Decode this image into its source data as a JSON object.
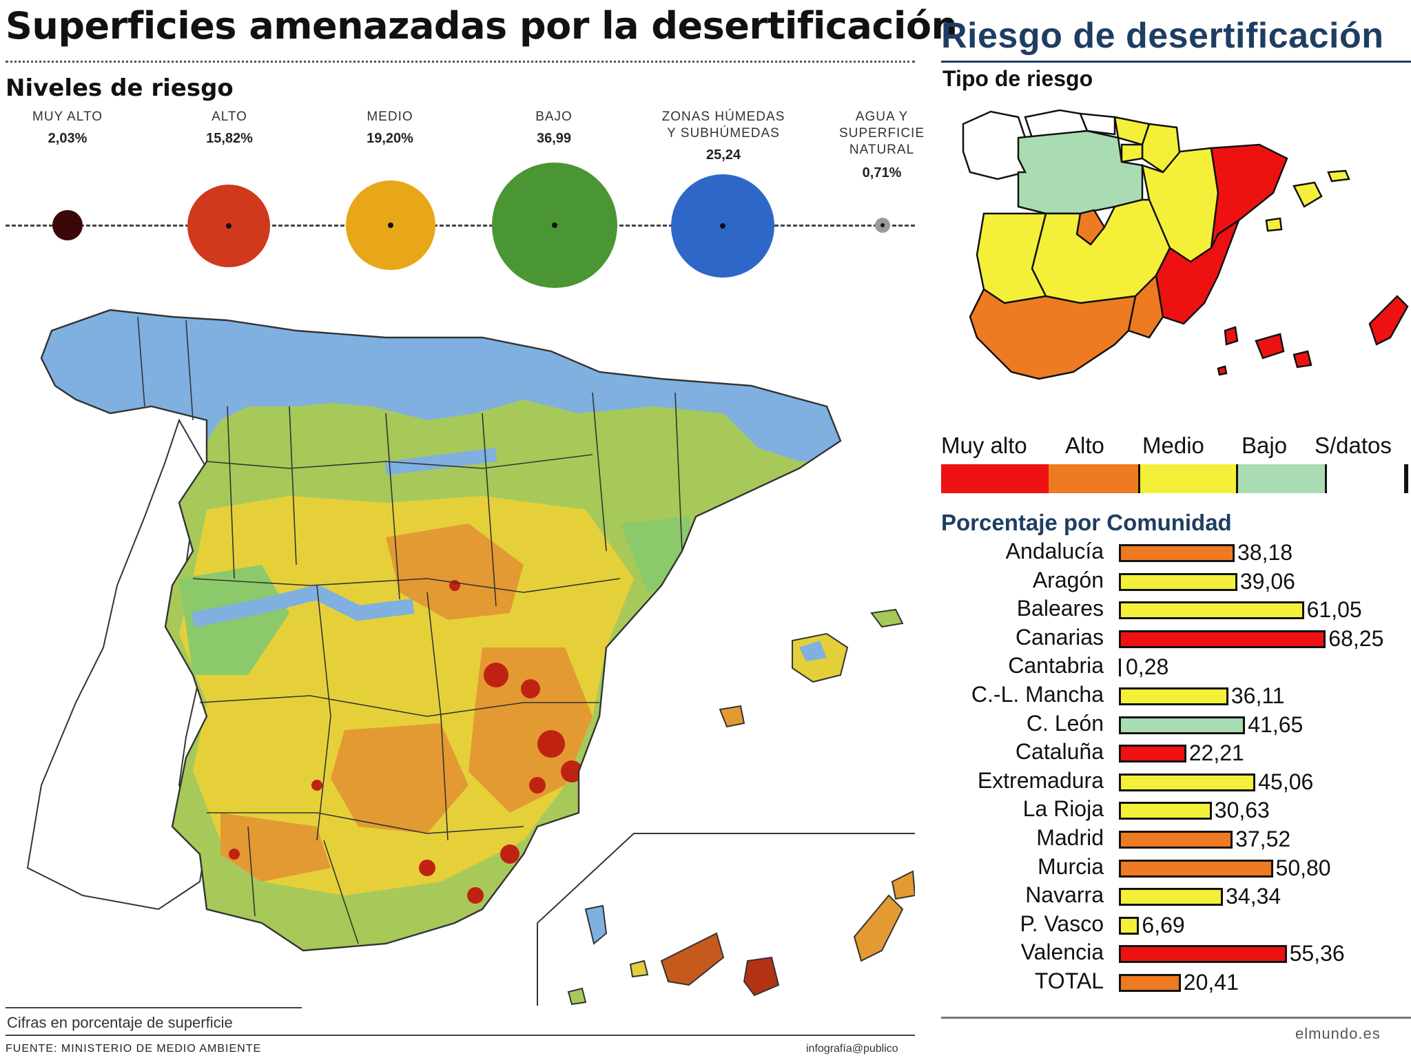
{
  "left": {
    "title": "Superficies amenazadas por la desertificación",
    "levels_heading": "Niveles de riesgo",
    "levels": [
      {
        "label": "MUY ALTO",
        "value": "2,03%",
        "color": "#3a0806"
      },
      {
        "label": "ALTO",
        "value": "15,82%",
        "color": "#d0391c"
      },
      {
        "label": "MEDIO",
        "value": "19,20%",
        "color": "#e7a719"
      },
      {
        "label": "BAJO",
        "value": "36,99",
        "color": "#4a9534"
      },
      {
        "label": "ZONAS HÚMEDAS\nY SUBHÚMEDAS",
        "value": "25,24",
        "color": "#2f67c9"
      },
      {
        "label": "AGUA Y\nSUPERFICIE\nNATURAL",
        "value": "0,71%",
        "color": "#9a9a9a"
      }
    ],
    "footnote": "Cifras en porcentaje de superficie",
    "source": "FUENTE: MINISTERIO DE MEDIO AMBIENTE",
    "credit": "infografía@publico"
  },
  "right": {
    "title": "Riesgo de desertificación",
    "tipo_heading": "Tipo de riesgo",
    "legend": [
      {
        "label": "Muy alto",
        "color": "#ee1111"
      },
      {
        "label": "Alto",
        "color": "#ee7a22"
      },
      {
        "label": "Medio",
        "color": "#f4f03a"
      },
      {
        "label": "Bajo",
        "color": "#a9dcb2"
      },
      {
        "label": "S/datos",
        "color": "#ffffff"
      }
    ],
    "pct_heading": "Porcentaje por Comunidad",
    "regions": [
      {
        "name": "Andalucía",
        "value": 38.18,
        "label": "38,18",
        "color": "#ee7a22"
      },
      {
        "name": "Aragón",
        "value": 39.06,
        "label": "39,06",
        "color": "#f4f03a"
      },
      {
        "name": "Baleares",
        "value": 61.05,
        "label": "61,05",
        "color": "#f4f03a"
      },
      {
        "name": "Canarias",
        "value": 68.25,
        "label": "68,25",
        "color": "#ee1111"
      },
      {
        "name": "Cantabria",
        "value": 0.28,
        "label": "0,28",
        "color": "#f4f03a"
      },
      {
        "name": "C.-L. Mancha",
        "value": 36.11,
        "label": "36,11",
        "color": "#f4f03a"
      },
      {
        "name": "C. León",
        "value": 41.65,
        "label": "41,65",
        "color": "#a9dcb2"
      },
      {
        "name": "Cataluña",
        "value": 22.21,
        "label": "22,21",
        "color": "#ee1111"
      },
      {
        "name": "Extremadura",
        "value": 45.06,
        "label": "45,06",
        "color": "#f4f03a"
      },
      {
        "name": "La Rioja",
        "value": 30.63,
        "label": "30,63",
        "color": "#f4f03a"
      },
      {
        "name": "Madrid",
        "value": 37.52,
        "label": "37,52",
        "color": "#ee7a22"
      },
      {
        "name": "Murcia",
        "value": 50.8,
        "label": "50,80",
        "color": "#ee7a22"
      },
      {
        "name": "Navarra",
        "value": 34.34,
        "label": "34,34",
        "color": "#f4f03a"
      },
      {
        "name": "P. Vasco",
        "value": 6.69,
        "label": "6,69",
        "color": "#f4f03a"
      },
      {
        "name": "Valencia",
        "value": 55.36,
        "label": "55,36",
        "color": "#ee1111"
      },
      {
        "name": "TOTAL",
        "value": 20.41,
        "label": "20,41",
        "color": "#ee7a22"
      }
    ],
    "source": "elmundo.es"
  }
}
